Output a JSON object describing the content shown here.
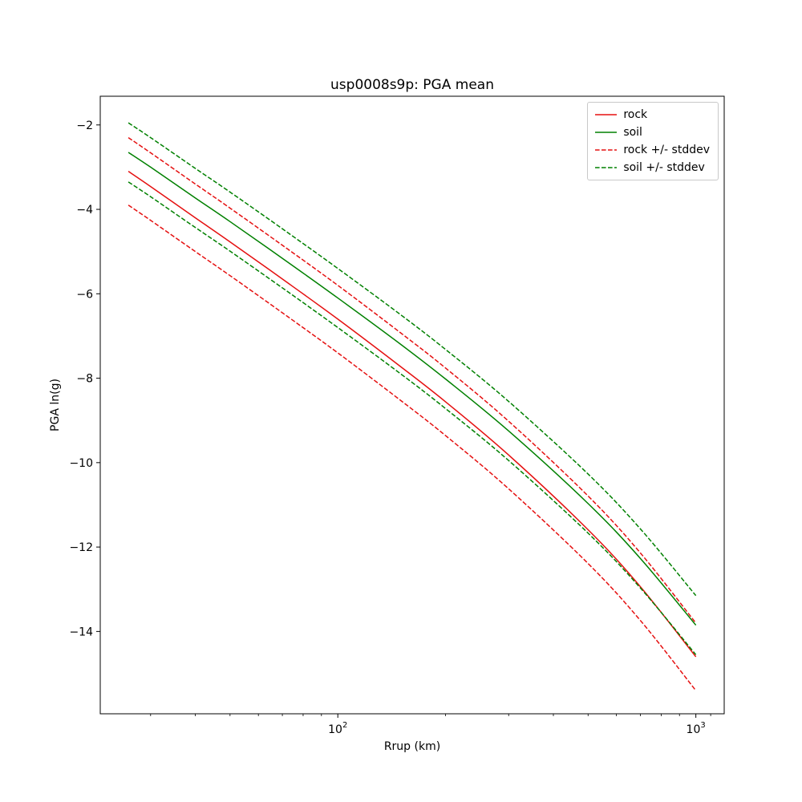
{
  "figure": {
    "title": "usp0008s9p: PGA mean",
    "xlabel": "Rrup (km)",
    "ylabel": "PGA ln(g)",
    "background": "#ffffff"
  },
  "chart_data": {
    "type": "line",
    "title": "usp0008s9p: PGA mean",
    "xlabel": "Rrup (km)",
    "ylabel": "PGA ln(g)",
    "x_scale": "log",
    "y_scale": "linear",
    "xlim": [
      21.7,
      1200
    ],
    "ylim": [
      -15.95,
      -1.32
    ],
    "grid": false,
    "legend_position": "upper-right",
    "x_ticks_major": [
      {
        "value": 100,
        "base": "10",
        "exp": "2"
      },
      {
        "value": 1000,
        "base": "10",
        "exp": "3"
      }
    ],
    "x_ticks_minor": [
      30,
      40,
      50,
      60,
      70,
      80,
      90,
      200,
      300,
      400,
      500,
      600,
      700,
      800,
      900,
      1100
    ],
    "y_ticks": [
      {
        "value": -2,
        "label": "−2"
      },
      {
        "value": -4,
        "label": "−4"
      },
      {
        "value": -6,
        "label": "−6"
      },
      {
        "value": -8,
        "label": "−8"
      },
      {
        "value": -10,
        "label": "−10"
      },
      {
        "value": -12,
        "label": "−12"
      },
      {
        "value": -14,
        "label": "−14"
      }
    ],
    "x": [
      26,
      30,
      40,
      50,
      70,
      100,
      150,
      200,
      300,
      500,
      700,
      1000
    ],
    "lines": [
      {
        "name": "rock-mean",
        "legend": "rock",
        "color": "#e51010",
        "dash": false,
        "y": [
          -3.1,
          -3.46,
          -4.2,
          -4.77,
          -5.65,
          -6.6,
          -7.73,
          -8.56,
          -9.82,
          -11.59,
          -12.94,
          -14.6
        ]
      },
      {
        "name": "soil-mean",
        "legend": "soil",
        "color": "#008000",
        "dash": false,
        "y": [
          -2.65,
          -3.0,
          -3.73,
          -4.29,
          -5.16,
          -6.1,
          -7.2,
          -8.02,
          -9.25,
          -10.97,
          -12.27,
          -13.85
        ]
      },
      {
        "name": "rock-plus-stddev",
        "legend": "rock +/- stddev",
        "color": "#e51010",
        "dash": true,
        "y": [
          -2.3,
          -2.66,
          -3.4,
          -3.97,
          -4.85,
          -5.8,
          -6.93,
          -7.76,
          -9.02,
          -10.79,
          -12.14,
          -13.8
        ]
      },
      {
        "name": "rock-minus-stddev",
        "legend": "rock +/- stddev",
        "color": "#e51010",
        "dash": true,
        "y": [
          -3.9,
          -4.26,
          -5.0,
          -5.57,
          -6.45,
          -7.4,
          -8.53,
          -9.36,
          -10.62,
          -12.39,
          -13.74,
          -15.4
        ]
      },
      {
        "name": "soil-plus-stddev",
        "legend": "soil +/- stddev",
        "color": "#008000",
        "dash": true,
        "y": [
          -1.95,
          -2.3,
          -3.03,
          -3.59,
          -4.46,
          -5.4,
          -6.5,
          -7.32,
          -8.55,
          -10.27,
          -11.57,
          -13.15
        ]
      },
      {
        "name": "soil-minus-stddev",
        "legend": "soil +/- stddev",
        "color": "#008000",
        "dash": true,
        "y": [
          -3.35,
          -3.7,
          -4.43,
          -4.99,
          -5.86,
          -6.8,
          -7.9,
          -8.72,
          -9.95,
          -11.67,
          -12.97,
          -14.55
        ]
      }
    ],
    "legend_entries": [
      {
        "label": "rock",
        "color": "#e51010",
        "dash": false
      },
      {
        "label": "soil",
        "color": "#008000",
        "dash": false
      },
      {
        "label": "rock +/- stddev",
        "color": "#e51010",
        "dash": true
      },
      {
        "label": "soil +/- stddev",
        "color": "#008000",
        "dash": true
      }
    ]
  }
}
